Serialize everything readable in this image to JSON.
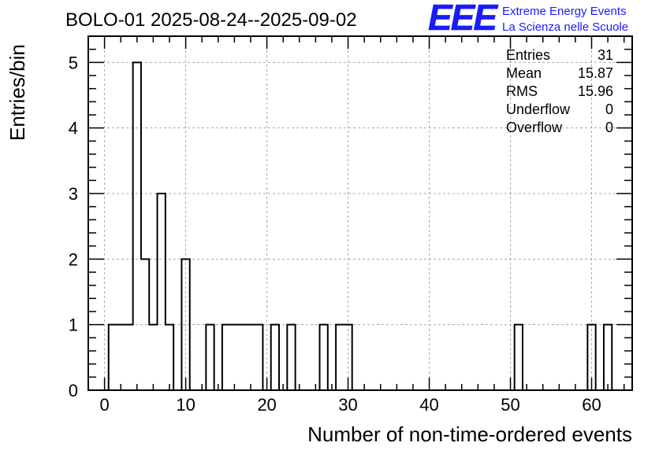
{
  "chart_data": {
    "type": "bar",
    "title": "BOLO-01 2025-08-24--2025-09-02",
    "xlabel": "Number of non-time-ordered events",
    "ylabel": "Entries/bin",
    "xlim": [
      -2,
      65
    ],
    "ylim": [
      0,
      5.4
    ],
    "grid": true,
    "x_ticks": [
      0,
      10,
      20,
      30,
      40,
      50,
      60
    ],
    "y_ticks": [
      0,
      1,
      2,
      3,
      4,
      5
    ],
    "x_tick_labels": [
      "0",
      "10",
      "20",
      "30",
      "40",
      "50",
      "60"
    ],
    "y_tick_labels": [
      "0",
      "1",
      "2",
      "3",
      "4",
      "5"
    ],
    "bin_width": 1,
    "bins": [
      {
        "x": 1,
        "y": 1
      },
      {
        "x": 2,
        "y": 1
      },
      {
        "x": 3,
        "y": 1
      },
      {
        "x": 4,
        "y": 5
      },
      {
        "x": 5,
        "y": 2
      },
      {
        "x": 6,
        "y": 1
      },
      {
        "x": 7,
        "y": 3
      },
      {
        "x": 8,
        "y": 1
      },
      {
        "x": 10,
        "y": 2
      },
      {
        "x": 13,
        "y": 1
      },
      {
        "x": 15,
        "y": 1
      },
      {
        "x": 16,
        "y": 1
      },
      {
        "x": 17,
        "y": 1
      },
      {
        "x": 18,
        "y": 1
      },
      {
        "x": 19,
        "y": 1
      },
      {
        "x": 21,
        "y": 1
      },
      {
        "x": 23,
        "y": 1
      },
      {
        "x": 27,
        "y": 1
      },
      {
        "x": 29,
        "y": 1
      },
      {
        "x": 30,
        "y": 1
      },
      {
        "x": 51,
        "y": 1
      },
      {
        "x": 60,
        "y": 1
      },
      {
        "x": 62,
        "y": 1
      }
    ],
    "stats": [
      {
        "label": "Entries",
        "value": "31"
      },
      {
        "label": "Mean",
        "value": "15.87"
      },
      {
        "label": "RMS",
        "value": "15.96"
      },
      {
        "label": "Underflow",
        "value": "0"
      },
      {
        "label": "Overflow",
        "value": "0"
      }
    ]
  },
  "logo": {
    "mark": "EEE",
    "line1": "Extreme Energy Events",
    "line2": "La Scienza nelle Scuole",
    "color": "#1a1aff"
  }
}
